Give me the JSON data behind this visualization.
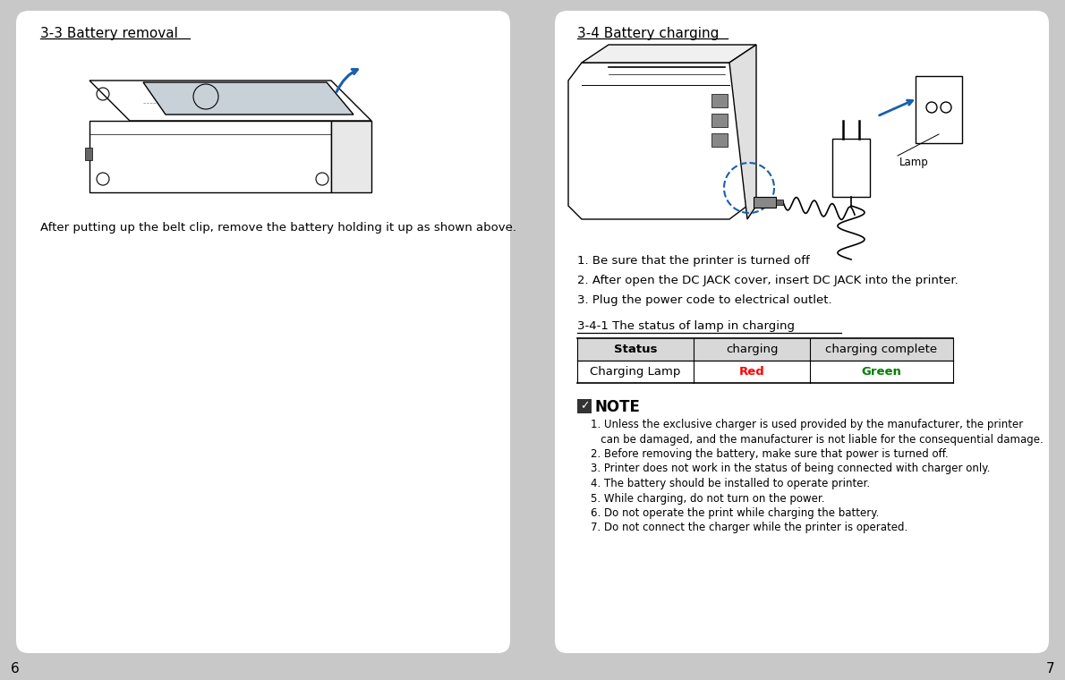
{
  "bg_color": "#c8c8c8",
  "page_bg": "#ffffff",
  "left_page": {
    "title": "3-3 Battery removal",
    "caption": "After putting up the belt clip, remove the battery holding it up as shown above."
  },
  "right_page": {
    "title": "3-4 Battery charging",
    "steps": [
      "1. Be sure that the printer is turned off",
      "2. After open the DC JACK cover, insert DC JACK into the printer.",
      "3. Plug the power code to electrical outlet."
    ],
    "table_title": "3-4-1 The status of lamp in charging",
    "table_header": [
      "Status",
      "charging",
      "charging complete"
    ],
    "table_row": [
      "Charging Lamp",
      "Red",
      "Green"
    ],
    "red_color": "#ff0000",
    "green_color": "#008000",
    "note_title": "NOTE",
    "notes": [
      "1. Unless the exclusive charger is used provided by the manufacturer, the printer",
      "   can be damaged, and the manufacturer is not liable for the consequential damage.",
      "2. Before removing the battery, make sure that power is turned off.",
      "3. Printer does not work in the status of being connected with charger only.",
      "4. The battery should be installed to operate printer.",
      "5. While charging, do not turn on the power.",
      "6. Do not operate the print while charging the battery.",
      "7. Do not connect the charger while the printer is operated."
    ]
  },
  "page_numbers": [
    "6",
    "7"
  ]
}
